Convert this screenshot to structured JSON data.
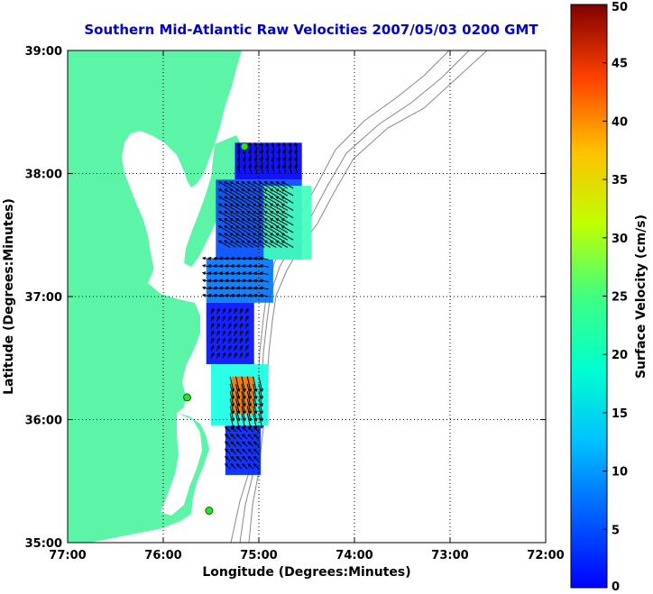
{
  "chart_data": {
    "type": "vector-field map",
    "title": "Southern Mid-Atlantic Raw Velocities 2007/05/03 0200 GMT",
    "xlabel": "Longitude (Degrees:Minutes)",
    "ylabel": "Latitude (Degrees:Minutes)",
    "xlim": [
      -77,
      -72
    ],
    "ylim": [
      35,
      39
    ],
    "x_ticks": [
      {
        "value": -77,
        "label": "77:00"
      },
      {
        "value": -76,
        "label": "76:00"
      },
      {
        "value": -75,
        "label": "75:00"
      },
      {
        "value": -74,
        "label": "74:00"
      },
      {
        "value": -73,
        "label": "73:00"
      },
      {
        "value": -72,
        "label": "72:00"
      }
    ],
    "y_ticks": [
      {
        "value": 39,
        "label": "39:00"
      },
      {
        "value": 38,
        "label": "38:00"
      },
      {
        "value": 37,
        "label": "37:00"
      },
      {
        "value": 36,
        "label": "36:00"
      },
      {
        "value": 35,
        "label": "35:00"
      }
    ],
    "grid": "dotted",
    "colorbar": {
      "label": "Surface Velocity (cm/s)",
      "range": [
        0,
        50
      ],
      "ticks": [
        0,
        5,
        10,
        15,
        20,
        25,
        30,
        35,
        40,
        45,
        50
      ],
      "colormap": "jet"
    },
    "land_color": "#5cf5a8",
    "contour_color": "#888888",
    "stations": [
      {
        "lon": -75.15,
        "lat": 38.22
      },
      {
        "lon": -75.75,
        "lat": 36.18
      },
      {
        "lon": -75.52,
        "lat": 35.26
      }
    ],
    "regions": [
      {
        "lon": [
          -75.25,
          -74.55
        ],
        "lat": [
          37.95,
          38.25
        ],
        "speed": 6
      },
      {
        "lon": [
          -75.45,
          -74.55
        ],
        "lat": [
          37.3,
          37.95
        ],
        "speed": 10
      },
      {
        "lon": [
          -74.95,
          -74.45
        ],
        "lat": [
          37.3,
          37.9
        ],
        "speed": 22
      },
      {
        "lon": [
          -75.55,
          -74.85
        ],
        "lat": [
          36.95,
          37.3
        ],
        "speed": 12
      },
      {
        "lon": [
          -75.55,
          -75.05
        ],
        "lat": [
          36.45,
          36.95
        ],
        "speed": 7
      },
      {
        "lon": [
          -75.5,
          -74.9
        ],
        "lat": [
          35.95,
          36.45
        ],
        "speed": 20
      },
      {
        "lon": [
          -75.28,
          -75.05
        ],
        "lat": [
          36.05,
          36.35
        ],
        "speed": 38
      },
      {
        "lon": [
          -75.35,
          -74.98
        ],
        "lat": [
          35.55,
          35.95
        ],
        "speed": 8
      }
    ],
    "vector_fields": [
      {
        "lon": [
          -75.2,
          -74.6
        ],
        "lat": [
          38.0,
          38.2
        ],
        "u": -2,
        "v": 10
      },
      {
        "lon": [
          -75.3,
          -74.6
        ],
        "lat": [
          37.4,
          37.9
        ],
        "u": -14,
        "v": 8
      },
      {
        "lon": [
          -75.5,
          -74.9
        ],
        "lat": [
          37.0,
          37.3
        ],
        "u": -10,
        "v": 2
      },
      {
        "lon": [
          -75.5,
          -75.1
        ],
        "lat": [
          36.5,
          36.9
        ],
        "u": 3,
        "v": 6
      },
      {
        "lon": [
          -75.3,
          -75.0
        ],
        "lat": [
          36.05,
          36.4
        ],
        "u": 4,
        "v": -18
      },
      {
        "lon": [
          -75.3,
          -75.0
        ],
        "lat": [
          35.6,
          35.9
        ],
        "u": -6,
        "v": 6
      }
    ]
  }
}
